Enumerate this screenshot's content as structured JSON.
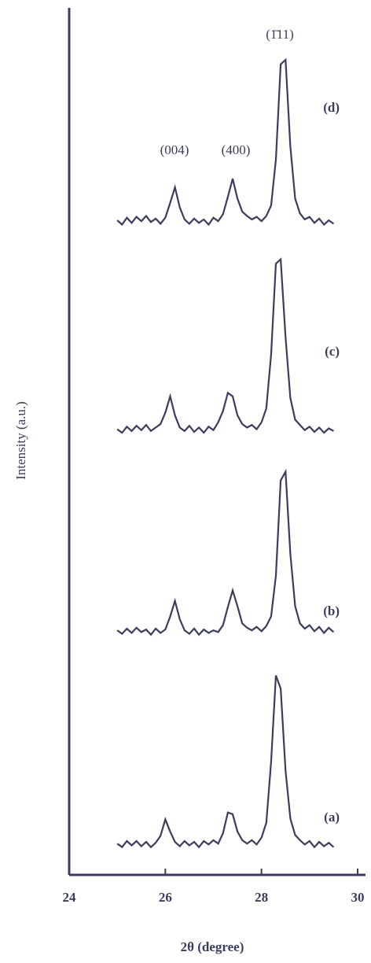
{
  "chart_data": {
    "type": "line",
    "xlabel": "2θ (degree)",
    "ylabel": "Intensity (a.u.)",
    "annotations": [
      "(004)",
      "(400)",
      "(1̄11)"
    ],
    "color": "#3a3d5c",
    "xlim": [
      24,
      30
    ],
    "xticks": [
      24,
      26,
      28,
      30
    ],
    "ylim": [
      0,
      100
    ],
    "x": [
      25.0,
      25.1,
      25.2,
      25.3,
      25.4,
      25.5,
      25.6,
      25.7,
      25.8,
      25.9,
      26.0,
      26.1,
      26.2,
      26.3,
      26.4,
      26.5,
      26.6,
      26.7,
      26.8,
      26.9,
      27.0,
      27.1,
      27.2,
      27.3,
      27.4,
      27.5,
      27.6,
      27.7,
      27.8,
      27.9,
      28.0,
      28.1,
      28.2,
      28.3,
      28.4,
      28.5,
      28.6,
      28.7,
      28.8,
      28.9,
      29.0,
      29.1,
      29.2,
      29.3,
      29.4,
      29.5
    ],
    "series": [
      {
        "name": "(a)",
        "values": [
          3.6,
          3.2,
          3.9,
          3.4,
          3.9,
          3.3,
          3.8,
          3.2,
          3.7,
          4.5,
          6.4,
          5.0,
          3.8,
          3.3,
          3.9,
          3.4,
          3.8,
          3.2,
          3.9,
          3.5,
          4.0,
          3.6,
          4.8,
          7.2,
          7.0,
          5.0,
          4.0,
          3.6,
          4.0,
          3.5,
          4.3,
          6.0,
          13.0,
          23.0,
          21.5,
          12.0,
          6.5,
          4.6,
          4.0,
          3.5,
          3.9,
          3.2,
          3.8,
          3.3,
          3.7,
          3.2
        ]
      },
      {
        "name": "(b)",
        "values": [
          28.2,
          27.8,
          28.4,
          27.9,
          28.5,
          28.0,
          28.3,
          27.7,
          28.4,
          27.9,
          28.3,
          29.8,
          31.6,
          29.5,
          28.2,
          27.8,
          28.4,
          27.7,
          28.3,
          27.9,
          28.2,
          28.0,
          28.8,
          30.9,
          32.8,
          31.0,
          29.0,
          28.5,
          28.2,
          28.6,
          28.1,
          28.7,
          29.8,
          34.5,
          45.5,
          46.5,
          37.0,
          31.0,
          29.0,
          28.4,
          28.8,
          28.1,
          28.6,
          27.9,
          28.5,
          28.0
        ]
      },
      {
        "name": "(c)",
        "values": [
          51.4,
          51.0,
          51.7,
          51.2,
          51.8,
          51.3,
          51.9,
          51.2,
          51.6,
          52.0,
          53.3,
          55.2,
          53.0,
          51.6,
          51.2,
          51.8,
          51.1,
          51.6,
          51.0,
          51.7,
          51.3,
          52.2,
          53.5,
          55.6,
          55.2,
          53.0,
          52.0,
          51.6,
          51.9,
          51.4,
          52.2,
          53.8,
          60.0,
          70.5,
          71.0,
          62.0,
          55.0,
          52.5,
          51.9,
          51.3,
          51.7,
          51.1,
          51.6,
          51.0,
          51.5,
          51.2
        ]
      },
      {
        "name": "(d)",
        "values": [
          75.5,
          75.0,
          75.8,
          75.2,
          75.9,
          75.4,
          76.0,
          75.3,
          75.7,
          75.1,
          75.8,
          77.5,
          79.3,
          77.0,
          75.6,
          75.1,
          75.7,
          75.2,
          75.6,
          75.0,
          75.8,
          75.4,
          76.2,
          78.2,
          80.3,
          78.0,
          76.5,
          76.0,
          75.6,
          75.9,
          75.4,
          76.0,
          77.2,
          82.5,
          93.5,
          94.0,
          84.0,
          78.0,
          76.3,
          75.6,
          75.9,
          75.2,
          75.7,
          75.0,
          75.5,
          75.1
        ]
      }
    ]
  }
}
